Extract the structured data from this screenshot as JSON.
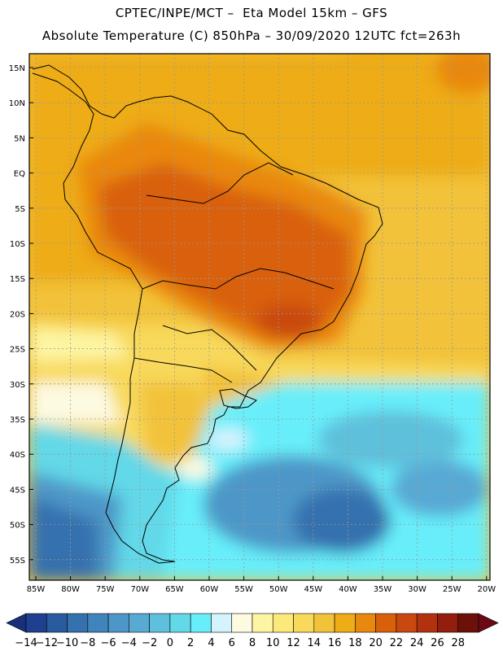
{
  "header": {
    "line1": "CPTEC/INPE/MCT –  Eta Model 15km – GFS",
    "line2": "Absolute Temperature (C) 850hPa – 30/09/2020 12UTC fct=263h"
  },
  "map": {
    "lat_labels": [
      "15N",
      "10N",
      "5N",
      "EQ",
      "5S",
      "10S",
      "15S",
      "20S",
      "25S",
      "30S",
      "35S",
      "40S",
      "45S",
      "50S",
      "55S"
    ],
    "lon_labels": [
      "85W",
      "80W",
      "75W",
      "70W",
      "65W",
      "60W",
      "55W",
      "50W",
      "45W",
      "40W",
      "35W",
      "30W",
      "25W",
      "20W"
    ]
  },
  "colorbar": {
    "labels": [
      "-14",
      "-12",
      "-10",
      "-8",
      "-6",
      "-4",
      "-2",
      "0",
      "2",
      "4",
      "6",
      "8",
      "10",
      "12",
      "14",
      "16",
      "18",
      "20",
      "22",
      "24",
      "26",
      "28"
    ],
    "colors": [
      "#1f3f8f",
      "#2a5b9e",
      "#3571ae",
      "#4084bc",
      "#4d97c8",
      "#58a9d4",
      "#5ec0dc",
      "#62d8e8",
      "#67eefa",
      "#d4f3fc",
      "#fdfae2",
      "#fdf5a3",
      "#fbea7a",
      "#f8d95b",
      "#f2c23a",
      "#eeac17",
      "#e9880f",
      "#d9600b",
      "#c94810",
      "#b23210",
      "#921f0e",
      "#6b1109"
    ]
  },
  "colors": {
    "land_outline": "#000000",
    "grid": "#999999"
  }
}
